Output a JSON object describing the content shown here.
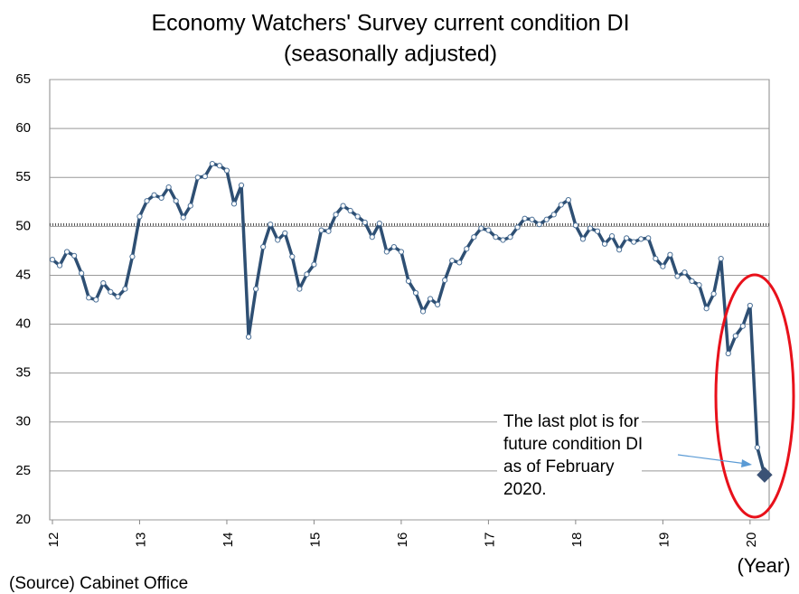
{
  "chart_data": {
    "type": "line",
    "title": [
      "Economy Watchers' Survey current condition DI",
      "(seasonally adjusted)"
    ],
    "x_label": "(Year)",
    "source": "(Source) Cabinet Office",
    "annotation": [
      "The last plot is for",
      "future condition DI",
      "as of February",
      "2020."
    ],
    "categories": [
      "12",
      null,
      null,
      null,
      null,
      null,
      null,
      null,
      null,
      null,
      null,
      null,
      "13",
      null,
      null,
      null,
      null,
      null,
      null,
      null,
      null,
      null,
      null,
      null,
      "14",
      null,
      null,
      null,
      null,
      null,
      null,
      null,
      null,
      null,
      null,
      null,
      "15",
      null,
      null,
      null,
      null,
      null,
      null,
      null,
      null,
      null,
      null,
      null,
      "16",
      null,
      null,
      null,
      null,
      null,
      null,
      null,
      null,
      null,
      null,
      null,
      "17",
      null,
      null,
      null,
      null,
      null,
      null,
      null,
      null,
      null,
      null,
      null,
      "18",
      null,
      null,
      null,
      null,
      null,
      null,
      null,
      null,
      null,
      null,
      null,
      "19",
      null,
      null,
      null,
      null,
      null,
      null,
      null,
      null,
      null,
      null,
      null,
      "20",
      null,
      null
    ],
    "series": [
      {
        "color": "#2e4f73",
        "last_marker": "diamond",
        "values": [
          46.6,
          46.0,
          47.4,
          47.0,
          45.2,
          42.7,
          42.5,
          44.2,
          43.3,
          42.8,
          43.6,
          46.9,
          51.0,
          52.6,
          53.2,
          52.9,
          54.0,
          52.6,
          50.9,
          52.1,
          55.0,
          55.1,
          56.4,
          56.2,
          55.7,
          52.3,
          54.2,
          38.7,
          43.6,
          47.9,
          50.2,
          48.6,
          49.3,
          46.9,
          43.6,
          45.1,
          46.1,
          49.6,
          49.5,
          51.2,
          52.1,
          51.6,
          51.0,
          50.4,
          48.9,
          50.3,
          47.4,
          47.9,
          47.4,
          44.4,
          43.2,
          41.3,
          42.6,
          42.0,
          44.5,
          46.5,
          46.3,
          47.7,
          48.9,
          49.8,
          49.6,
          48.9,
          48.6,
          48.9,
          49.9,
          50.8,
          50.7,
          50.2,
          50.7,
          51.2,
          52.2,
          52.7,
          50.1,
          48.7,
          49.8,
          49.5,
          48.2,
          49.0,
          47.6,
          48.8,
          48.4,
          48.7,
          48.8,
          46.7,
          45.9,
          47.1,
          44.9,
          45.3,
          44.4,
          44.0,
          41.6,
          43.1,
          46.7,
          37.0,
          38.8,
          39.8,
          41.9,
          27.4,
          24.6
        ]
      }
    ],
    "ylim": [
      20,
      65
    ],
    "yticks": [
      20,
      25,
      30,
      35,
      40,
      45,
      50,
      55,
      60,
      65
    ],
    "grid": true,
    "reference_line": 50
  }
}
